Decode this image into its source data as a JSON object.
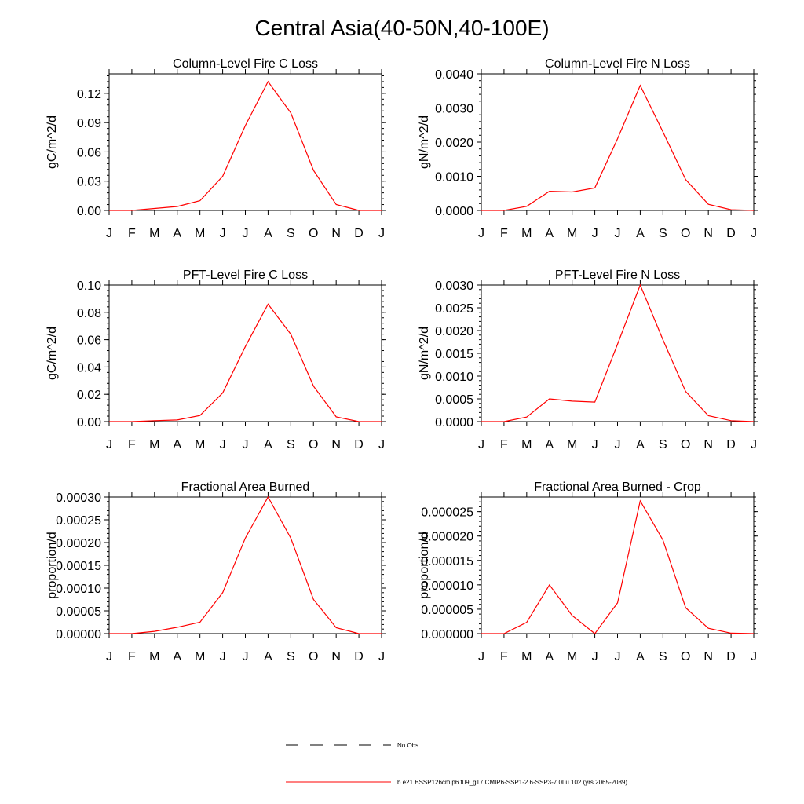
{
  "title": "Central Asia(40-50N,40-100E)",
  "colors": {
    "series": "#ff0000",
    "axis": "#000000",
    "obs": "#000000"
  },
  "chart_data": [
    {
      "type": "line",
      "title": "Column-Level Fire C Loss",
      "ylabel": "gC/m^2/d",
      "x": [
        "J",
        "F",
        "M",
        "A",
        "M",
        "J",
        "J",
        "A",
        "S",
        "O",
        "N",
        "D",
        "J"
      ],
      "ylim": [
        0,
        0.14
      ],
      "yticks": [
        0,
        0.03,
        0.06,
        0.09,
        0.12
      ],
      "ytick_labels": [
        "0.00",
        "0.03",
        "0.06",
        "0.09",
        "0.12"
      ],
      "series": [
        {
          "values": [
            0,
            0,
            0.002,
            0.004,
            0.01,
            0.035,
            0.087,
            0.132,
            0.1,
            0.041,
            0.006,
            0,
            0
          ]
        }
      ]
    },
    {
      "type": "line",
      "title": "Column-Level Fire N Loss",
      "ylabel": "gN/m^2/d",
      "x": [
        "J",
        "F",
        "M",
        "A",
        "M",
        "J",
        "J",
        "A",
        "S",
        "O",
        "N",
        "D",
        "J"
      ],
      "ylim": [
        0,
        0.004
      ],
      "yticks": [
        0,
        0.001,
        0.002,
        0.003,
        0.004
      ],
      "ytick_labels": [
        "0.0000",
        "0.0010",
        "0.0020",
        "0.0030",
        "0.0040"
      ],
      "series": [
        {
          "values": [
            0,
            0,
            0.00012,
            0.00056,
            0.00054,
            0.00066,
            0.0021,
            0.00366,
            0.0023,
            0.0009,
            0.00018,
            2e-05,
            0
          ]
        }
      ]
    },
    {
      "type": "line",
      "title": "PFT-Level Fire C Loss",
      "ylabel": "gC/m^2/d",
      "x": [
        "J",
        "F",
        "M",
        "A",
        "M",
        "J",
        "J",
        "A",
        "S",
        "O",
        "N",
        "D",
        "J"
      ],
      "ylim": [
        0,
        0.1
      ],
      "yticks": [
        0,
        0.02,
        0.04,
        0.06,
        0.08,
        0.1
      ],
      "ytick_labels": [
        "0.00",
        "0.02",
        "0.04",
        "0.06",
        "0.08",
        "0.10"
      ],
      "series": [
        {
          "values": [
            0,
            0,
            0.0007,
            0.0012,
            0.0045,
            0.021,
            0.055,
            0.086,
            0.064,
            0.026,
            0.0035,
            0,
            0
          ]
        }
      ]
    },
    {
      "type": "line",
      "title": "PFT-Level Fire N Loss",
      "ylabel": "gN/m^2/d",
      "x": [
        "J",
        "F",
        "M",
        "A",
        "M",
        "J",
        "J",
        "A",
        "S",
        "O",
        "N",
        "D",
        "J"
      ],
      "ylim": [
        0,
        0.003
      ],
      "yticks": [
        0,
        0.0005,
        0.001,
        0.0015,
        0.002,
        0.0025,
        0.003
      ],
      "ytick_labels": [
        "0.0000",
        "0.0005",
        "0.0010",
        "0.0015",
        "0.0020",
        "0.0025",
        "0.0030"
      ],
      "series": [
        {
          "values": [
            0,
            0,
            0.0001,
            0.0005,
            0.00045,
            0.00043,
            0.0017,
            0.003,
            0.0018,
            0.00066,
            0.00013,
            2e-05,
            0
          ]
        }
      ]
    },
    {
      "type": "line",
      "title": "Fractional Area Burned",
      "ylabel": "proportion/d",
      "x": [
        "J",
        "F",
        "M",
        "A",
        "M",
        "J",
        "J",
        "A",
        "S",
        "O",
        "N",
        "D",
        "J"
      ],
      "ylim": [
        0,
        0.0003
      ],
      "yticks": [
        0,
        5e-05,
        0.0001,
        0.00015,
        0.0002,
        0.00025,
        0.0003
      ],
      "ytick_labels": [
        "0.00000",
        "0.00005",
        "0.00010",
        "0.00015",
        "0.00020",
        "0.00025",
        "0.00030"
      ],
      "series": [
        {
          "values": [
            0,
            0,
            5e-06,
            1.4e-05,
            2.5e-05,
            9e-05,
            0.00021,
            0.0003,
            0.00021,
            7.5e-05,
            1.3e-05,
            0,
            0
          ]
        }
      ]
    },
    {
      "type": "line",
      "title": "Fractional Area Burned - Crop",
      "ylabel": "proportion/d",
      "x": [
        "J",
        "F",
        "M",
        "A",
        "M",
        "J",
        "J",
        "A",
        "S",
        "O",
        "N",
        "D",
        "J"
      ],
      "ylim": [
        0,
        2.8e-05
      ],
      "yticks": [
        0,
        5e-06,
        1e-05,
        1.5e-05,
        2e-05,
        2.5e-05
      ],
      "ytick_labels": [
        "0.000000",
        "0.000005",
        "0.000010",
        "0.000015",
        "0.000020",
        "0.000025"
      ],
      "series": [
        {
          "values": [
            0,
            0,
            2.3e-06,
            1e-05,
            3.7e-06,
            0,
            6.3e-06,
            2.72e-05,
            1.92e-05,
            5.3e-06,
            1.1e-06,
            1e-07,
            0
          ]
        }
      ]
    }
  ],
  "legend": {
    "obs_label": "No Obs",
    "model_label": "b.e21.BSSP126cmip6.f09_g17.CMIP6-SSP1-2.6-SSP3-7.0Lu.102 (yrs 2065-2089)"
  }
}
